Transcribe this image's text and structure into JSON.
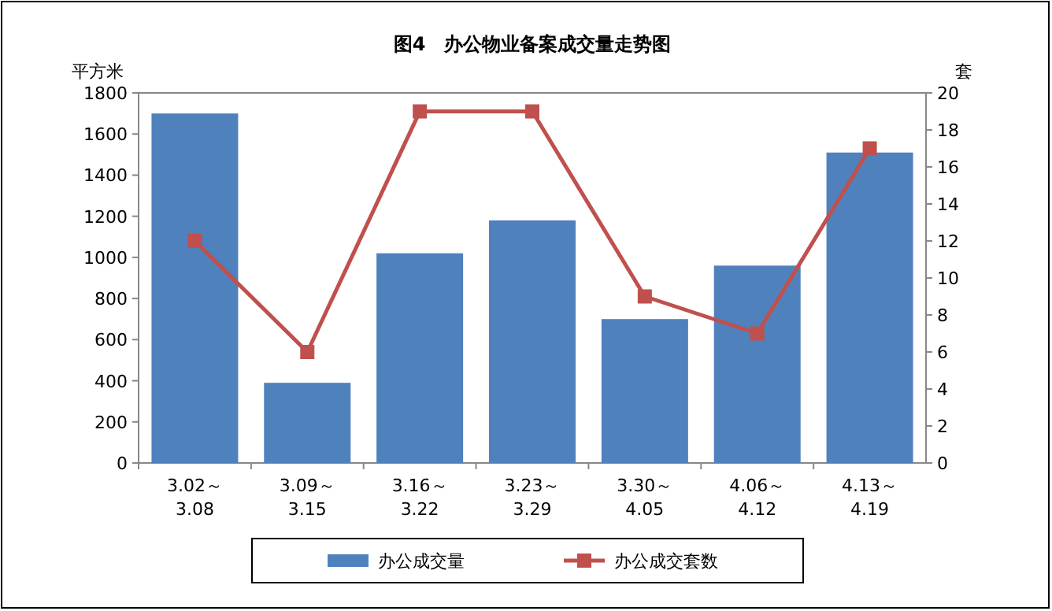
{
  "chart_data": {
    "type": "bar",
    "title": "图4　办公物业备案成交量走势图",
    "ylabel": "平方米",
    "y2label": "套",
    "categories": [
      "3.02～3.08",
      "3.09～3.15",
      "3.16～3.22",
      "3.23～3.29",
      "3.30～4.05",
      "4.06～4.12",
      "4.13～4.19"
    ],
    "series": [
      {
        "name": "办公成交量",
        "color": "#4f81bd",
        "values": [
          1700,
          390,
          1020,
          1180,
          700,
          960,
          1510
        ]
      },
      {
        "name": "办公成交套数",
        "type": "line",
        "axis": "y2",
        "color": "#c0504d",
        "marker": "square",
        "values": [
          12,
          6,
          19,
          19,
          9,
          7,
          17
        ]
      }
    ],
    "ylim": [
      0,
      1800
    ],
    "yticks": [
      0,
      200,
      400,
      600,
      800,
      1000,
      1200,
      1400,
      1600,
      1800
    ],
    "y2lim": [
      0,
      20
    ],
    "y2ticks": [
      0,
      2,
      4,
      6,
      8,
      10,
      12,
      14,
      16,
      18,
      20
    ],
    "grid": false,
    "legend": "bottom"
  }
}
